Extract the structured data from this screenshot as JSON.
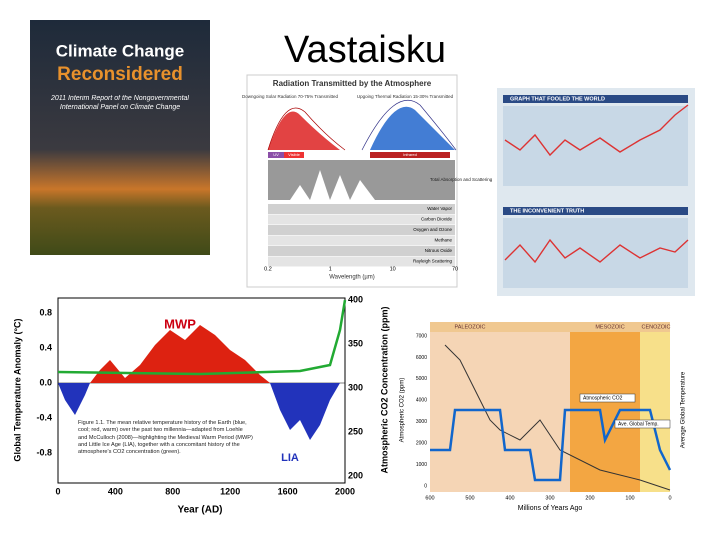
{
  "slide": {
    "title": "Vastaisku"
  },
  "cover": {
    "line1": "Climate Change",
    "line2": "Reconsidered",
    "subtitle": "2011 Interim Report of the Nongovernmental International Panel on Climate Change"
  },
  "radiation": {
    "title": "Radiation Transmitted by the Atmosphere",
    "solar": "Downgoing Solar Radiation 70-75% Transmitted",
    "thermal": "Upgoing Thermal Radiation 15-30% Transmitted",
    "uv": "UV",
    "visible": "Visible",
    "infrared": "Infrared",
    "absorption": "Total Absorption and Scattering",
    "gases": [
      "Water Vapor",
      "Carbon Dioxide",
      "Oxygen and Ozone",
      "Methane",
      "Nitrous Oxide",
      "Rayleigh Scattering"
    ],
    "xlabel": "Wavelength (µm)",
    "xticks": [
      "0.2",
      "1",
      "10",
      "70"
    ]
  },
  "hockey": {
    "top": "GRAPH THAT FOOLED THE WORLD",
    "bottom": "THE INCONVENIENT TRUTH"
  },
  "mwp": {
    "mwp": "MWP",
    "lia": "LIA",
    "ylabel": "Global Temperature Anomaly (°C)",
    "y2label": "Atmospheric CO2 Concentration (ppm)",
    "xlabel": "Year (AD)",
    "yticks": [
      "0.8",
      "0.4",
      "0.0",
      "-0.4",
      "-0.8"
    ],
    "y2ticks": [
      "400",
      "350",
      "300",
      "250",
      "200"
    ],
    "xticks": [
      "0",
      "400",
      "800",
      "1200",
      "1600",
      "2000"
    ],
    "caption": "Figure 1.1. The mean relative temperature history of the Earth (blue, cool; red, warm) over the past two millennia—adapted from Loehle and McCulloch (2008)—highlighting the Medieval Warm Period (MWP) and Little Ice Age (LIA), together with a concomitant history of the atmosphere's CO2 concentration (green)."
  },
  "co2": {
    "eras": [
      "PALEOZOIC",
      "MESOZOIC",
      "CENOZOIC"
    ],
    "xlabel": "Millions of Years Ago",
    "ylabel": "Atmospheric CO2 (ppm)",
    "y2label": "Average Global Temperature",
    "legend1": "Atmospheric CO2",
    "legend2": "Ave. Global Temp.",
    "xticks": [
      "600",
      "500",
      "400",
      "300",
      "200",
      "100",
      "0"
    ],
    "yticks": [
      "7000",
      "6000",
      "5000",
      "4000",
      "3000",
      "2000",
      "1000",
      "0"
    ]
  }
}
